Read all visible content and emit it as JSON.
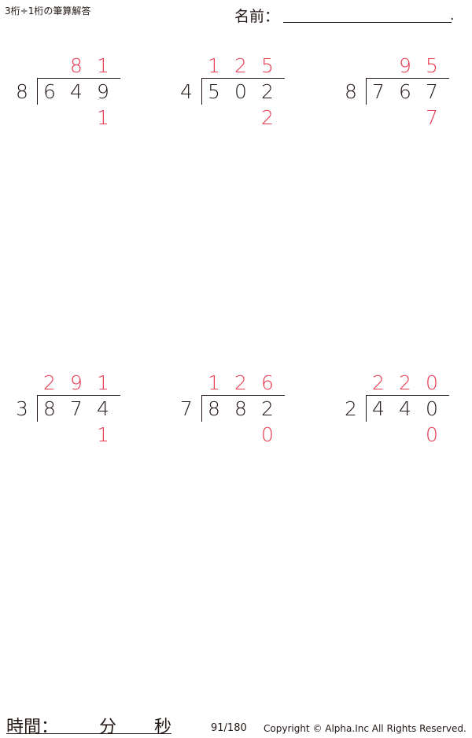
{
  "header": {
    "title": "3桁÷1桁の筆算解答",
    "name_label": "名前：",
    "name_end": "."
  },
  "problems": [
    {
      "divisor": "8",
      "dividend": [
        "6",
        "4",
        "9"
      ],
      "quotient": [
        "",
        "8",
        "1"
      ],
      "remainder": "1"
    },
    {
      "divisor": "4",
      "dividend": [
        "5",
        "0",
        "2"
      ],
      "quotient": [
        "1",
        "2",
        "5"
      ],
      "remainder": "2"
    },
    {
      "divisor": "8",
      "dividend": [
        "7",
        "6",
        "7"
      ],
      "quotient": [
        "",
        "9",
        "5"
      ],
      "remainder": "7"
    },
    {
      "divisor": "3",
      "dividend": [
        "8",
        "7",
        "4"
      ],
      "quotient": [
        "2",
        "9",
        "1"
      ],
      "remainder": "1"
    },
    {
      "divisor": "7",
      "dividend": [
        "8",
        "8",
        "2"
      ],
      "quotient": [
        "1",
        "2",
        "6"
      ],
      "remainder": "0"
    },
    {
      "divisor": "2",
      "dividend": [
        "4",
        "4",
        "0"
      ],
      "quotient": [
        "2",
        "2",
        "0"
      ],
      "remainder": "0"
    }
  ],
  "footer": {
    "time_label": "時間：",
    "minutes": "分",
    "seconds": "秒",
    "page": "91/180",
    "copyright": "Copyright © Alpha.Inc All Rights Reserved."
  },
  "colors": {
    "answer": "#e8384f",
    "text": "#231815"
  }
}
